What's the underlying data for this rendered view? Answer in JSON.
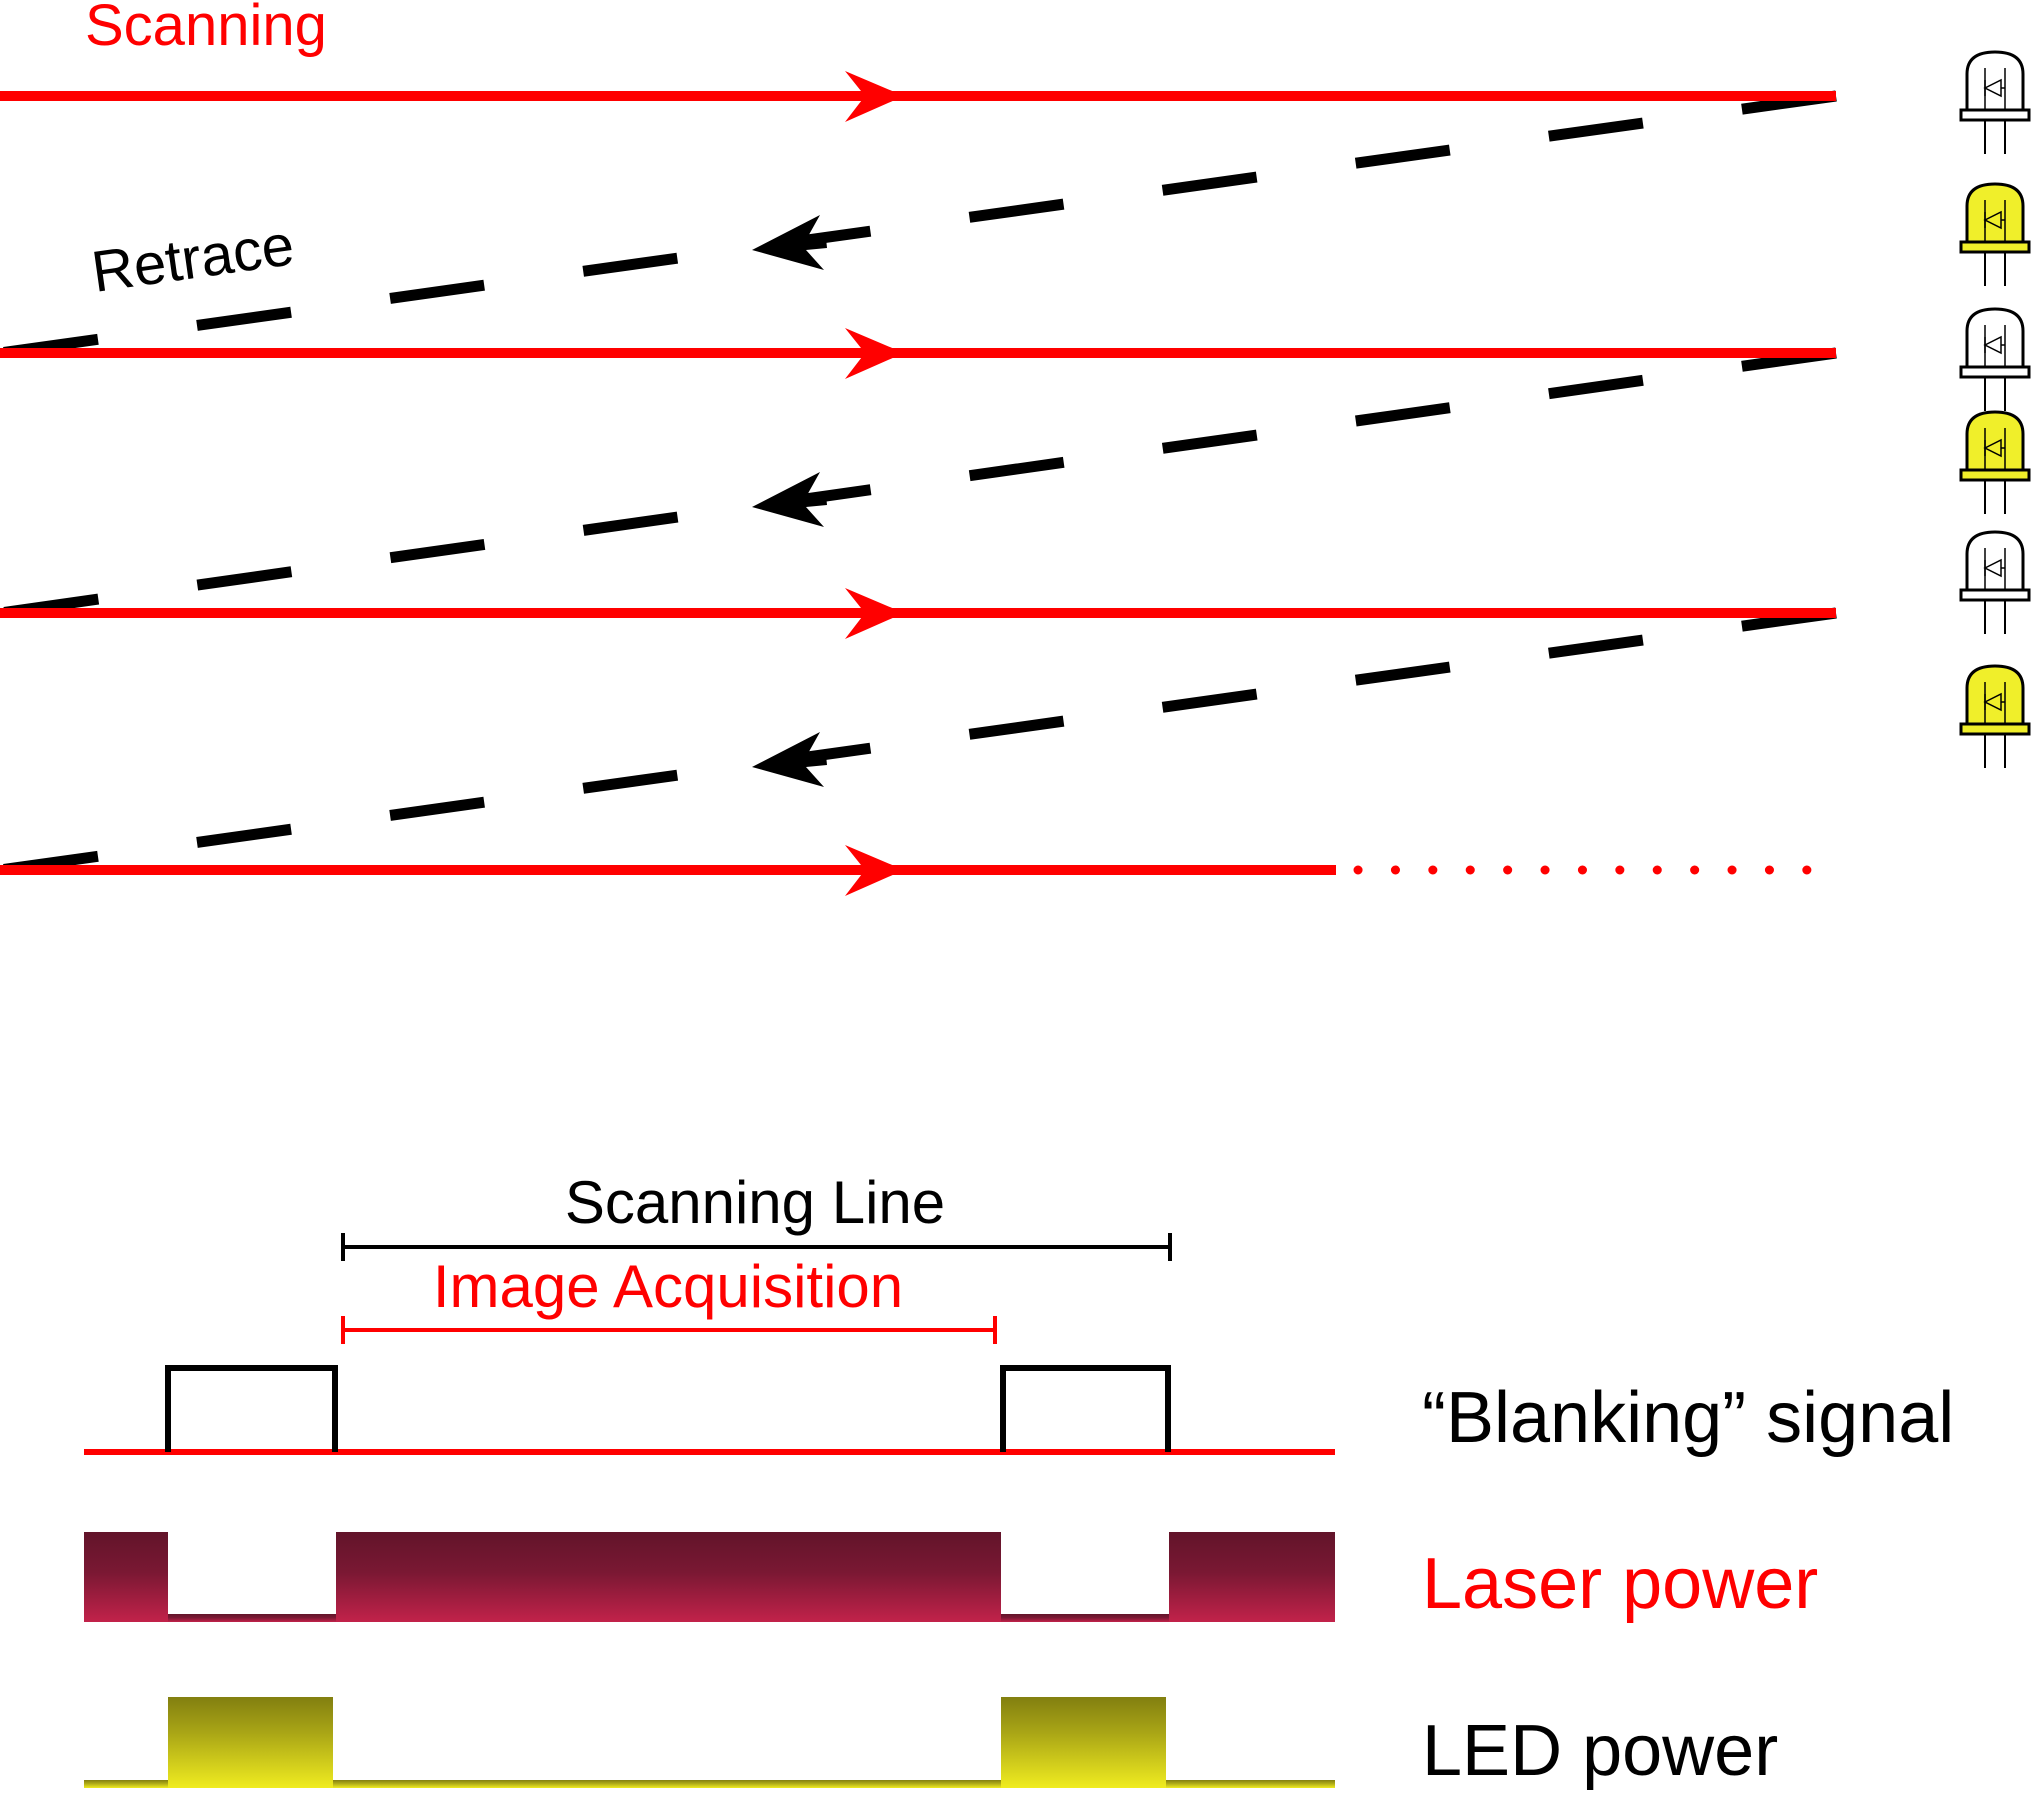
{
  "labels": {
    "scanning": "Scanning",
    "retrace": "Retrace",
    "scanning_line": "Scanning Line",
    "image_acquisition": "Image Acquisition",
    "blanking_signal": "“Blanking” signal",
    "laser_power": "Laser power",
    "led_power": "LED power"
  },
  "scan_pattern": {
    "scan_line_count": 4,
    "retrace_count": 3,
    "last_line_continues": true,
    "led_states": [
      "off",
      "on",
      "off",
      "on",
      "off",
      "on"
    ]
  },
  "colors": {
    "scan_line": "#ff0000",
    "retrace": "#000000",
    "led_on": "#f0ef2a",
    "led_off": "#ffffff",
    "laser_dark": "#62142a",
    "laser_light": "#c2224a",
    "led_power_dark": "#827f10",
    "led_power_light": "#f0ec20",
    "blanking_signal": "#000000",
    "baseline": "#ff0000"
  }
}
